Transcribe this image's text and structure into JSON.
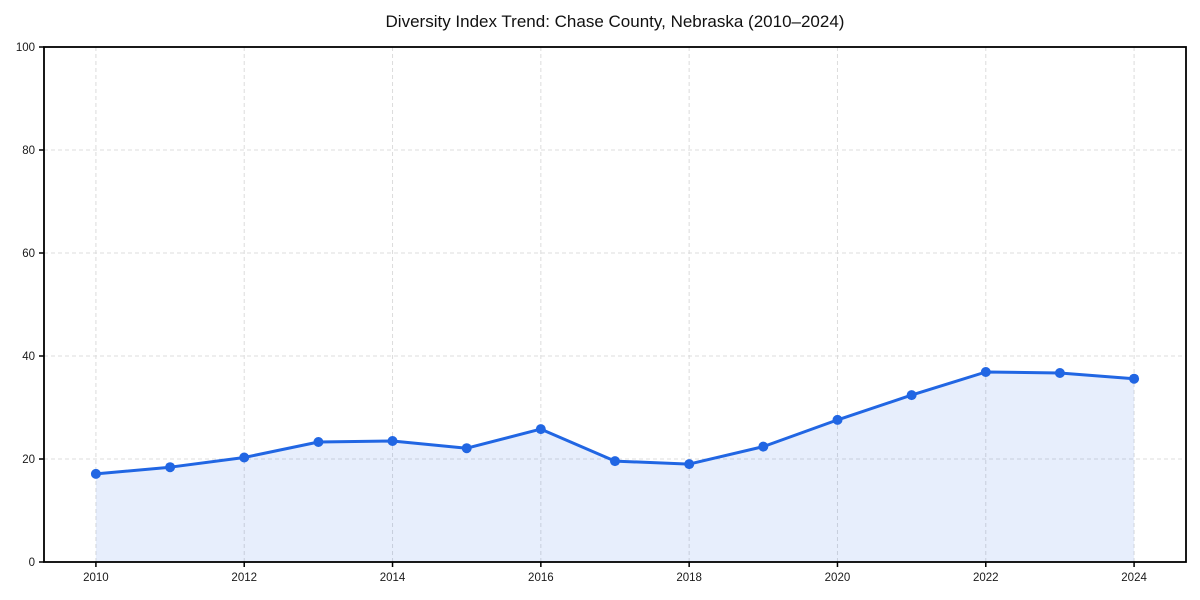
{
  "chart_data": {
    "type": "area",
    "title": "Diversity Index Trend: Chase County, Nebraska (2010–2024)",
    "series_name": "Diversity Index",
    "x": [
      2010,
      2011,
      2012,
      2013,
      2014,
      2015,
      2016,
      2017,
      2018,
      2019,
      2020,
      2021,
      2022,
      2023,
      2024
    ],
    "values": [
      17.1,
      18.4,
      20.3,
      23.3,
      23.5,
      22.1,
      25.8,
      19.6,
      19.0,
      22.4,
      27.6,
      32.4,
      36.9,
      36.7,
      35.6
    ],
    "xlabel": "",
    "ylabel": "",
    "xlim": [
      2009.3,
      2024.7
    ],
    "ylim": [
      0,
      100
    ],
    "x_ticks": [
      2010,
      2012,
      2014,
      2016,
      2018,
      2020,
      2022,
      2024
    ],
    "y_ticks": [
      0,
      20,
      40,
      60,
      80,
      100
    ],
    "grid": "dashed",
    "legend": "none",
    "colors": {
      "line": "#2166e3",
      "fill": "#2166e3",
      "fill_opacity": 0.11,
      "grid": "#dcdcdc",
      "axis": "#000000",
      "tick_text": "#1a1a1a"
    },
    "marker": "circle",
    "marker_radius": 5,
    "line_width": 3
  }
}
